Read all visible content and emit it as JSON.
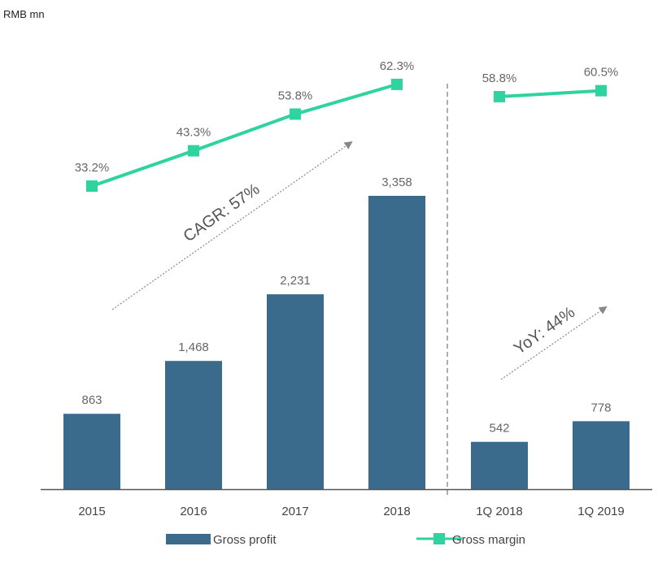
{
  "chart_data": {
    "type": "bar",
    "unit_label": "RMB mn",
    "categories": [
      "2015",
      "2016",
      "2017",
      "2018",
      "1Q 2018",
      "1Q 2019"
    ],
    "series": [
      {
        "name": "Gross profit",
        "kind": "bar",
        "values": [
          863,
          1468,
          2231,
          3358,
          542,
          778
        ],
        "labels": [
          "863",
          "1,468",
          "2,231",
          "3,358",
          "542",
          "778"
        ]
      },
      {
        "name": "Gross margin",
        "kind": "line",
        "values": [
          33.2,
          43.3,
          53.8,
          62.3,
          58.8,
          60.5
        ],
        "labels": [
          "33.2%",
          "43.3%",
          "53.8%",
          "62.3%",
          "58.8%",
          "60.5%"
        ],
        "segments": [
          [
            0,
            3
          ],
          [
            4,
            5
          ]
        ]
      }
    ],
    "annotations": [
      {
        "text": "CAGR: 57%",
        "span": [
          "2015",
          "2018"
        ]
      },
      {
        "text": "YoY: 44%",
        "span": [
          "1Q 2018",
          "1Q 2019"
        ]
      }
    ],
    "divider_after": "2018",
    "legend": {
      "position": "bottom",
      "items": [
        "Gross profit",
        "Gross margin"
      ]
    },
    "colors": {
      "bar": "#3a6a8c",
      "line": "#2ed3a0",
      "axis": "#555555",
      "label": "#666666",
      "arrow": "#888888"
    }
  }
}
